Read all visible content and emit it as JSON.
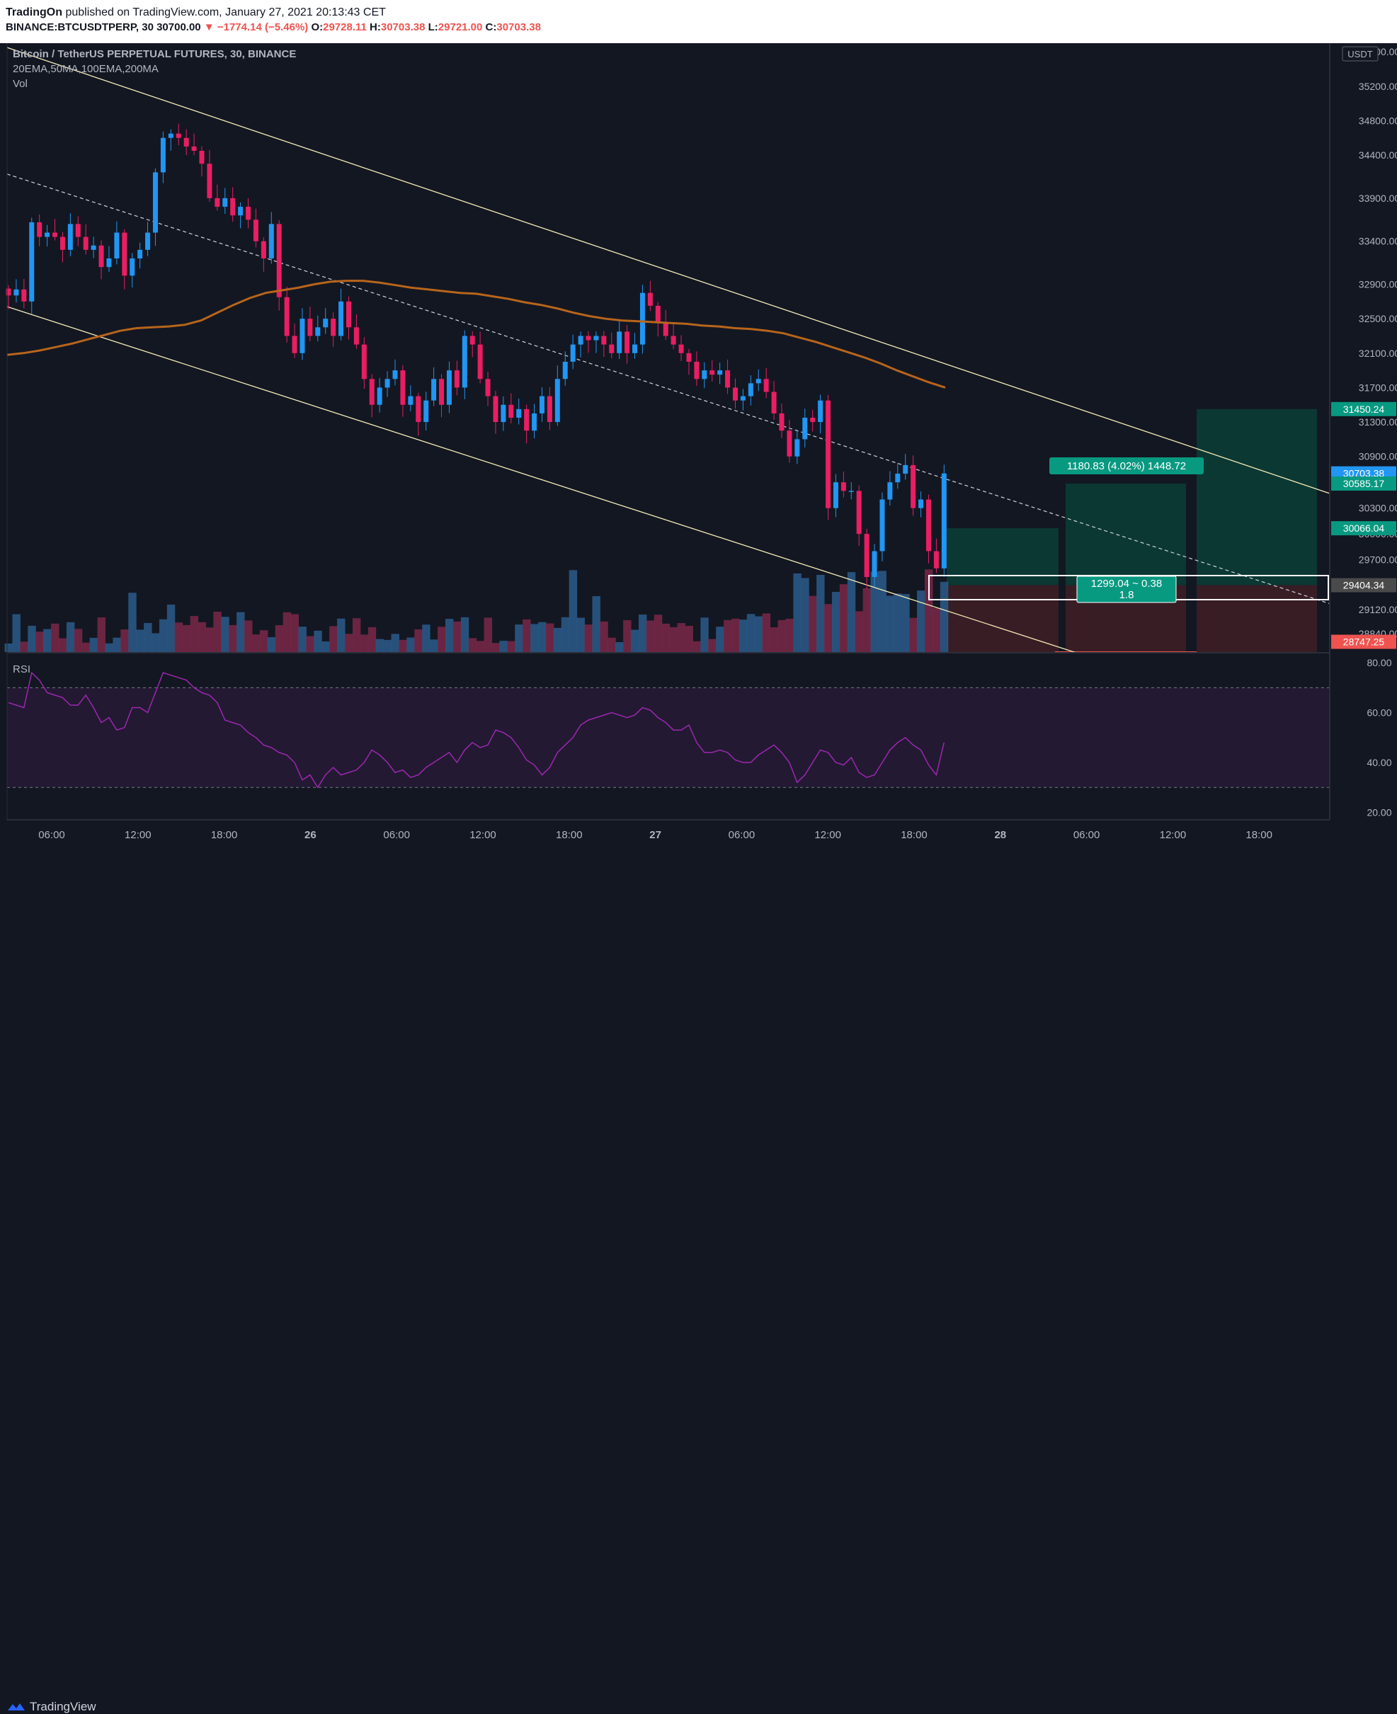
{
  "header": {
    "publisher": "TradingOn",
    "published_text": " published on TradingView.com, January 27, 2021 20:13:43 CET",
    "symbol_line_prefix": "BINANCE:BTCUSDTPERP, 30  30700.00 ",
    "change": "▼ −1774.14 (−5.46%)",
    "o_label": "O:",
    "o": "29728.11",
    "h_label": "H:",
    "h": "30703.38",
    "l_label": "L:",
    "l": "29721.00",
    "c_label": "C:",
    "c": "30703.38"
  },
  "legend": {
    "title": "Bitcoin / TetherUS PERPETUAL FUTURES, 30, BINANCE",
    "indicators": "20EMA,50MA,100EMA,200MA",
    "vol": "Vol",
    "rsi": "RSI"
  },
  "footer": {
    "brand": "TradingView"
  },
  "colors": {
    "background": "#131722",
    "up": "#2196f3",
    "down": "#e91e63",
    "ma": "#b8651b",
    "channel": "#f5ecb8",
    "rsi_line": "#9c27b0",
    "profit_zone": "#0b3a35",
    "loss_zone": "#3b1e26",
    "teal": "#089981"
  },
  "chart_data": [
    {
      "type": "candlestick",
      "title": "Bitcoin / TetherUS PERPETUAL FUTURES, 30, BINANCE",
      "ylabel": "USDT",
      "ylim": [
        28620,
        35700
      ],
      "y_ticks": [
        "35600.00",
        "35200.00",
        "34800.00",
        "34400.00",
        "33900.00",
        "33400.00",
        "32900.00",
        "32500.00",
        "32100.00",
        "31700.00",
        "31300.00",
        "30900.00",
        "30300.00",
        "30000.00",
        "29700.00",
        "29120.00",
        "28840.00"
      ],
      "x_ticks": [
        "06:00",
        "12:00",
        "18:00",
        "26",
        "06:00",
        "12:00",
        "18:00",
        "27",
        "06:00",
        "12:00",
        "18:00",
        "28",
        "06:00",
        "12:00",
        "18:00"
      ],
      "price_labels": [
        {
          "text": "31450.24",
          "value": 31450.24,
          "color": "#089981"
        },
        {
          "text": "30703.38",
          "value": 30703.38,
          "color": "#2196f3"
        },
        {
          "text": "30585.17",
          "value": 30585.17,
          "color": "#089981"
        },
        {
          "text": "30066.04",
          "value": 30066.04,
          "color": "#089981"
        },
        {
          "text": "29404.34",
          "value": 29404.34,
          "color": "#4a4a4a"
        },
        {
          "text": "28747.25",
          "value": 28747.25,
          "color": "#ef5350"
        }
      ],
      "closes": [
        32770,
        32840,
        32700,
        33620,
        33450,
        33500,
        33450,
        33300,
        33600,
        33450,
        33300,
        33350,
        33100,
        33200,
        33500,
        33000,
        33200,
        33300,
        33500,
        34200,
        34600,
        34650,
        34600,
        34500,
        34450,
        34300,
        33900,
        33800,
        33900,
        33700,
        33800,
        33650,
        33400,
        33200,
        33600,
        32750,
        32300,
        32100,
        32500,
        32300,
        32400,
        32500,
        32300,
        32700,
        32400,
        32200,
        31800,
        31500,
        31700,
        31800,
        31900,
        31500,
        31600,
        31300,
        31550,
        31800,
        31500,
        31900,
        31700,
        32300,
        32200,
        31800,
        31600,
        31300,
        31500,
        31350,
        31450,
        31200,
        31400,
        31600,
        31300,
        31800,
        32000,
        32200,
        32300,
        32250,
        32300,
        32200,
        32100,
        32350,
        32100,
        32200,
        32800,
        32650,
        32450,
        32300,
        32200,
        32100,
        32000,
        31800,
        31900,
        31850,
        31900,
        31700,
        31550,
        31600,
        31750,
        31800,
        31650,
        31400,
        31200,
        30900,
        31100,
        31350,
        31300,
        31550,
        30300,
        30600,
        30500,
        30500,
        30000,
        29500,
        29800,
        30400,
        30600,
        30700,
        30800,
        30300,
        30400,
        29800,
        29600,
        30703
      ],
      "ma100": [
        32080,
        32100,
        32130,
        32170,
        32210,
        32260,
        32310,
        32360,
        32390,
        32400,
        32410,
        32430,
        32480,
        32570,
        32660,
        32740,
        32800,
        32830,
        32860,
        32900,
        32930,
        32940,
        32940,
        32920,
        32890,
        32860,
        32840,
        32820,
        32800,
        32790,
        32760,
        32730,
        32690,
        32660,
        32620,
        32570,
        32530,
        32500,
        32480,
        32470,
        32460,
        32450,
        32440,
        32420,
        32410,
        32390,
        32380,
        32360,
        32330,
        32280,
        32230,
        32170,
        32110,
        32050,
        31980,
        31900,
        31830,
        31760,
        31700
      ]
    },
    {
      "type": "area",
      "title": "Vol"
    },
    {
      "type": "line",
      "title": "RSI",
      "ylim": [
        17,
        84
      ],
      "y_ticks": [
        "80.00",
        "60.00",
        "40.00",
        "20.00"
      ],
      "values": [
        64,
        63,
        62,
        76,
        73,
        68,
        67,
        66,
        63,
        63,
        67,
        62,
        56,
        58,
        53,
        54,
        62,
        62,
        60,
        68,
        76,
        75,
        74,
        73,
        70,
        68,
        67,
        64,
        57,
        56,
        55,
        52,
        50,
        47,
        46,
        44,
        43,
        40,
        33,
        35,
        30,
        35,
        38,
        35,
        36,
        37,
        40,
        45,
        43,
        40,
        36,
        37,
        34,
        35,
        38,
        40,
        42,
        44,
        40,
        45,
        48,
        46,
        47,
        53,
        52,
        50,
        46,
        41,
        39,
        35,
        38,
        44,
        47,
        50,
        55,
        57,
        58,
        59,
        60,
        59,
        58,
        59,
        62,
        61,
        58,
        56,
        53,
        53,
        55,
        48,
        44,
        44,
        45,
        44,
        41,
        40,
        40,
        43,
        45,
        47,
        44,
        40,
        32,
        35,
        40,
        45,
        44,
        40,
        39,
        42,
        36,
        34,
        35,
        40,
        45,
        48,
        50,
        47,
        45,
        39,
        35,
        48
      ]
    }
  ],
  "position_tool": {
    "upper_label": "1180.83 (4.02%) 1448.72",
    "lower_label_1": "1299.04 ~ 0.38",
    "lower_label_2": "1.8"
  }
}
